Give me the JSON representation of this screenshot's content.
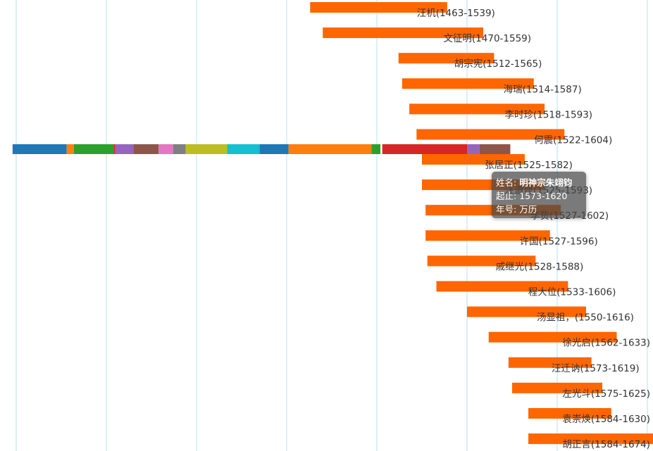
{
  "chart_data": {
    "type": "bar",
    "orientation": "horizontal-range",
    "xlim": [
      1280,
      1840
    ],
    "grid_x": [
      1300,
      1350,
      1400,
      1450,
      1500,
      1550,
      1600,
      1650,
      1700,
      1750,
      1800
    ],
    "series": [
      {
        "label": "汪机(1463-1539)",
        "start": 1463,
        "end": 1539,
        "color": "#ff6600"
      },
      {
        "label": "文征明(1470-1559)",
        "start": 1470,
        "end": 1559,
        "color": "#ff6600"
      },
      {
        "label": "胡宗宪(1512-1565)",
        "start": 1512,
        "end": 1565,
        "color": "#ff6600"
      },
      {
        "label": "海瑞(1514-1587)",
        "start": 1514,
        "end": 1587,
        "color": "#ff6600"
      },
      {
        "label": "李时珍(1518-1593)",
        "start": 1518,
        "end": 1593,
        "color": "#ff6600"
      },
      {
        "label": "何震(1522-1604)",
        "start": 1522,
        "end": 1604,
        "color": "#ff6600"
      },
      {
        "label": "张居正(1525-1582)",
        "start": 1525,
        "end": 1582,
        "color": "#ff6600"
      },
      {
        "label": "汪道昆(1525-1593)",
        "start": 1525,
        "end": 1593,
        "color": "#ff6600"
      },
      {
        "label": "李贽(1527-1602)",
        "start": 1527,
        "end": 1602,
        "color": "#ff6600"
      },
      {
        "label": "许国(1527-1596)",
        "start": 1527,
        "end": 1596,
        "color": "#ff6600"
      },
      {
        "label": "戚继光(1528-1588)",
        "start": 1528,
        "end": 1588,
        "color": "#ff6600"
      },
      {
        "label": "程大位(1533-1606)",
        "start": 1533,
        "end": 1606,
        "color": "#ff6600"
      },
      {
        "label": "汤显祖，(1550-1616)",
        "start": 1550,
        "end": 1616,
        "color": "#ff6600"
      },
      {
        "label": "徐光启(1562-1633)",
        "start": 1562,
        "end": 1633,
        "color": "#ff6600"
      },
      {
        "label": "汪迁讷(1573-1619)",
        "start": 1573,
        "end": 1619,
        "color": "#ff6600"
      },
      {
        "label": "左光斗(1575-1625)",
        "start": 1575,
        "end": 1625,
        "color": "#ff6600"
      },
      {
        "label": "袁崇焕(1584-1630)",
        "start": 1584,
        "end": 1630,
        "color": "#ff6600"
      },
      {
        "label": "胡正言(1584-1674)",
        "start": 1584,
        "end": 1674,
        "color": "#ff6600"
      }
    ],
    "reign_band": {
      "segments": [
        {
          "start": 1298,
          "end": 1328,
          "color": "#1f77b4"
        },
        {
          "start": 1328,
          "end": 1332,
          "color": "#ff7f0e"
        },
        {
          "start": 1332,
          "end": 1354,
          "color": "#2ca02c"
        },
        {
          "start": 1354,
          "end": 1355,
          "color": "#d62728"
        },
        {
          "start": 1355,
          "end": 1365,
          "color": "#9467bd"
        },
        {
          "start": 1365,
          "end": 1379,
          "color": "#8c564b"
        },
        {
          "start": 1379,
          "end": 1387,
          "color": "#e377c2"
        },
        {
          "start": 1387,
          "end": 1394,
          "color": "#7f7f7f"
        },
        {
          "start": 1394,
          "end": 1417,
          "color": "#bcbd22"
        },
        {
          "start": 1417,
          "end": 1435,
          "color": "#17becf"
        },
        {
          "start": 1435,
          "end": 1451,
          "color": "#1f77b4"
        },
        {
          "start": 1451,
          "end": 1497,
          "color": "#ff7f0e"
        },
        {
          "start": 1497,
          "end": 1502,
          "color": "#2ca02c"
        },
        {
          "start": 1502,
          "end": 1503,
          "color": "#ffffff"
        },
        {
          "start": 1503,
          "end": 1550,
          "color": "#d62728"
        },
        {
          "start": 1550,
          "end": 1557,
          "color": "#9467bd"
        },
        {
          "start": 1557,
          "end": 1574,
          "color": "#8c564b"
        }
      ]
    }
  },
  "tooltip": {
    "name_label": "姓名: ",
    "name_value": "明神宗朱翊钧",
    "range_label": "起止: ",
    "range_value": "1573-1620",
    "era_label": "年号: ",
    "era_value": "万历"
  }
}
